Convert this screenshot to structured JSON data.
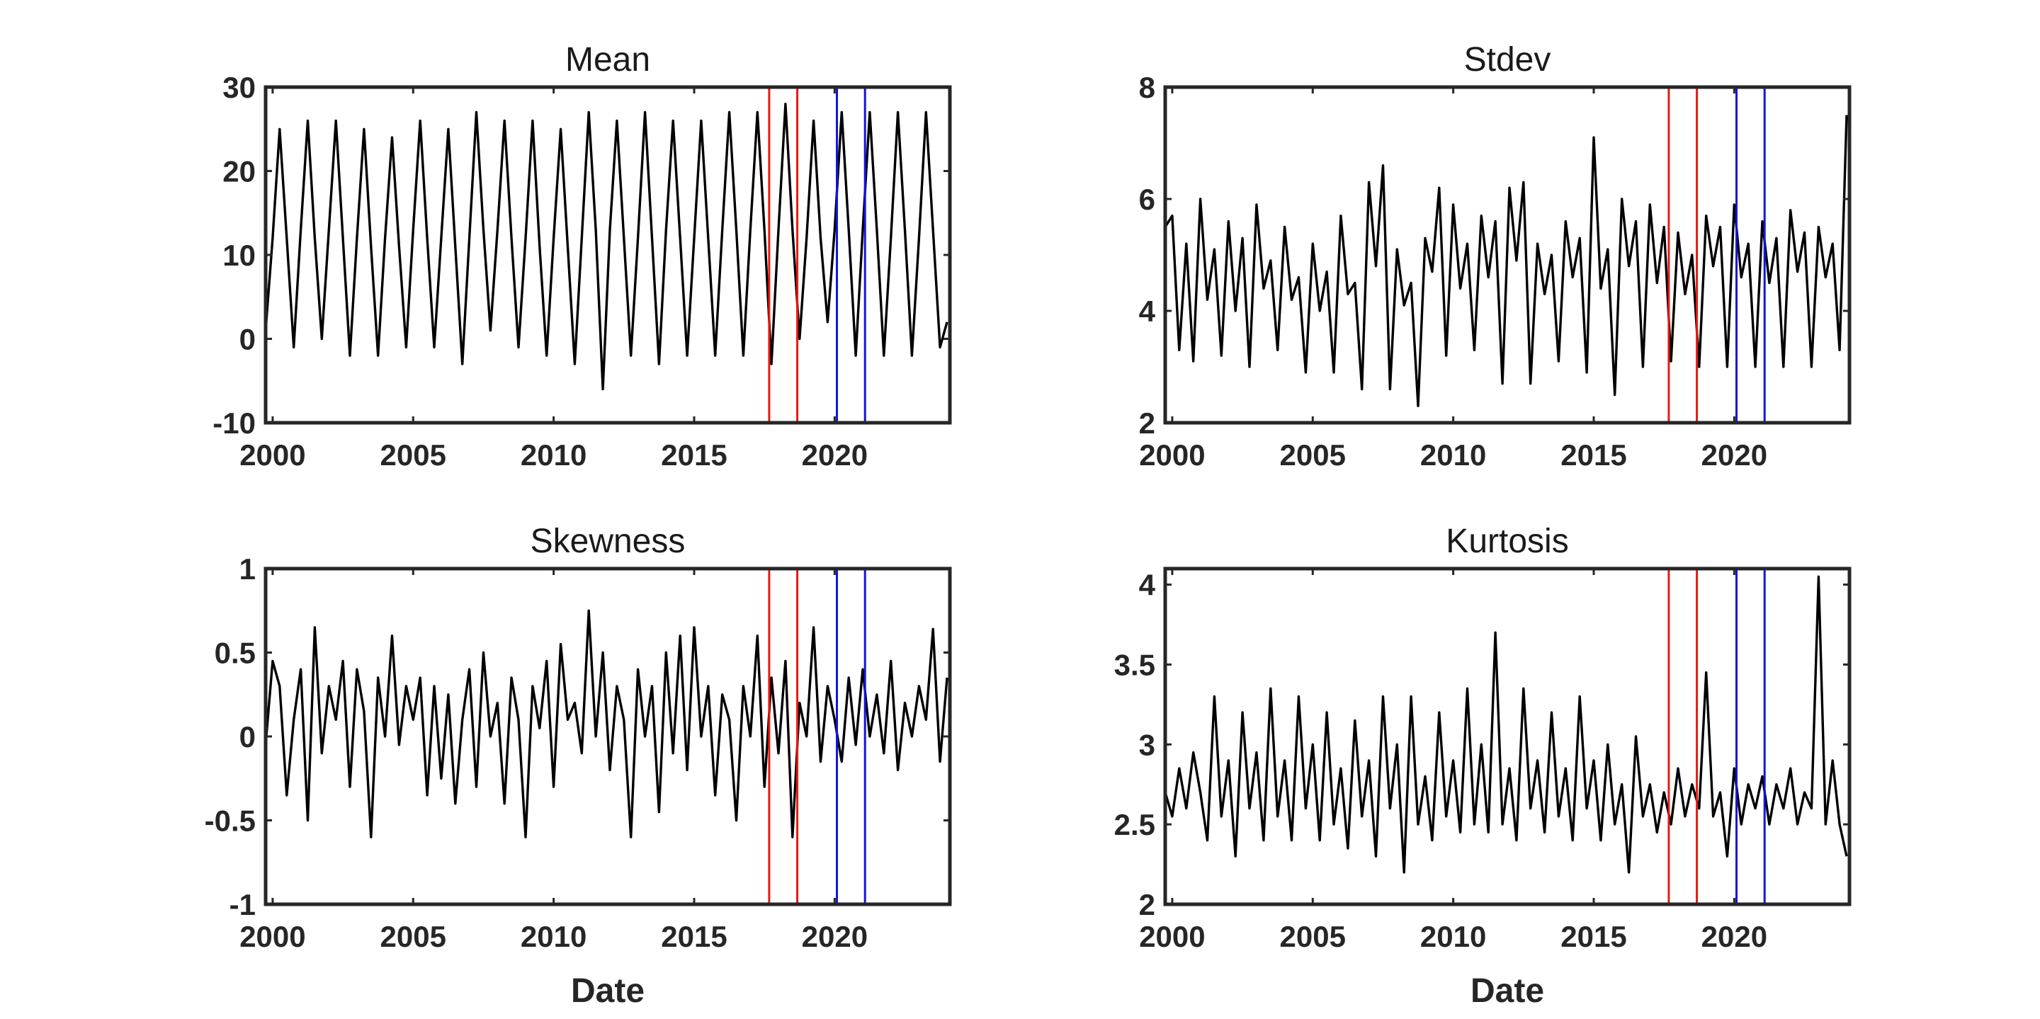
{
  "chart_data": [
    {
      "type": "line",
      "title": "Mean",
      "xlabel": "",
      "xlim": [
        1999.75,
        2024.1
      ],
      "ylim": [
        -10,
        30
      ],
      "xticks": [
        2000,
        2005,
        2010,
        2015,
        2020
      ],
      "xtick_labels": [
        "2000",
        "2005",
        "2010",
        "2015",
        "2020"
      ],
      "yticks": [
        -10,
        0,
        10,
        20,
        30
      ],
      "ytick_labels": [
        "-10",
        "0",
        "10",
        "20",
        "30"
      ],
      "grid": false,
      "series": [
        {
          "color": "#000000",
          "x": [
            1999.75,
            2000.0,
            2000.25,
            2000.5,
            2000.75,
            2001.0,
            2001.25,
            2001.5,
            2001.75,
            2002.0,
            2002.25,
            2002.5,
            2002.75,
            2003.0,
            2003.25,
            2003.5,
            2003.75,
            2004.0,
            2004.25,
            2004.5,
            2004.75,
            2005.0,
            2005.25,
            2005.5,
            2005.75,
            2006.0,
            2006.25,
            2006.5,
            2006.75,
            2007.0,
            2007.25,
            2007.5,
            2007.75,
            2008.0,
            2008.25,
            2008.5,
            2008.75,
            2009.0,
            2009.25,
            2009.5,
            2009.75,
            2010.0,
            2010.25,
            2010.5,
            2010.75,
            2011.0,
            2011.25,
            2011.5,
            2011.75,
            2012.0,
            2012.25,
            2012.5,
            2012.75,
            2013.0,
            2013.25,
            2013.5,
            2013.75,
            2014.0,
            2014.25,
            2014.5,
            2014.75,
            2015.0,
            2015.25,
            2015.5,
            2015.75,
            2016.0,
            2016.25,
            2016.5,
            2016.75,
            2017.0,
            2017.25,
            2017.5,
            2017.75,
            2018.0,
            2018.25,
            2018.5,
            2018.75,
            2019.0,
            2019.25,
            2019.5,
            2019.75,
            2020.0,
            2020.25,
            2020.5,
            2020.75,
            2021.0,
            2021.25,
            2021.5,
            2021.75,
            2022.0,
            2022.25,
            2022.5,
            2022.75,
            2023.0,
            2023.25,
            2023.5,
            2023.75,
            2024.0
          ],
          "y": [
            1,
            12,
            25,
            12,
            -1,
            13,
            26,
            12,
            0,
            13,
            26,
            12,
            -2,
            12,
            25,
            11,
            -2,
            12,
            24,
            11,
            -1,
            13,
            26,
            12,
            -1,
            12,
            25,
            11,
            -3,
            12,
            27,
            13,
            1,
            13,
            26,
            12,
            -1,
            12,
            26,
            11,
            -2,
            12,
            25,
            11,
            -3,
            12,
            27,
            13,
            -6,
            13,
            26,
            12,
            -2,
            12,
            27,
            12,
            -3,
            13,
            26,
            12,
            -2,
            12,
            26,
            12,
            -2,
            13,
            27,
            13,
            -2,
            13,
            27,
            13,
            -3,
            13,
            28,
            13,
            0,
            12,
            26,
            12,
            2,
            13,
            27,
            13,
            -2,
            13,
            27,
            13,
            -2,
            12,
            27,
            13,
            -2,
            12,
            27,
            13,
            -1,
            2
          ]
        }
      ],
      "vlines": [
        {
          "x": 2017.67,
          "color": "#e8190f"
        },
        {
          "x": 2018.67,
          "color": "#e8190f"
        },
        {
          "x": 2020.08,
          "color": "#1015e0"
        },
        {
          "x": 2021.08,
          "color": "#1015e0"
        }
      ]
    },
    {
      "type": "line",
      "title": "Stdev",
      "xlabel": "",
      "xlim": [
        1999.75,
        2024.1
      ],
      "ylim": [
        2,
        8
      ],
      "xticks": [
        2000,
        2005,
        2010,
        2015,
        2020
      ],
      "xtick_labels": [
        "2000",
        "2005",
        "2010",
        "2015",
        "2020"
      ],
      "yticks": [
        2,
        4,
        6,
        8
      ],
      "ytick_labels": [
        "2",
        "4",
        "6",
        "8"
      ],
      "grid": false,
      "series": [
        {
          "color": "#000000",
          "x": [
            1999.75,
            2000.0,
            2000.25,
            2000.5,
            2000.75,
            2001.0,
            2001.25,
            2001.5,
            2001.75,
            2002.0,
            2002.25,
            2002.5,
            2002.75,
            2003.0,
            2003.25,
            2003.5,
            2003.75,
            2004.0,
            2004.25,
            2004.5,
            2004.75,
            2005.0,
            2005.25,
            2005.5,
            2005.75,
            2006.0,
            2006.25,
            2006.5,
            2006.75,
            2007.0,
            2007.25,
            2007.5,
            2007.75,
            2008.0,
            2008.25,
            2008.5,
            2008.75,
            2009.0,
            2009.25,
            2009.5,
            2009.75,
            2010.0,
            2010.25,
            2010.5,
            2010.75,
            2011.0,
            2011.25,
            2011.5,
            2011.75,
            2012.0,
            2012.25,
            2012.5,
            2012.75,
            2013.0,
            2013.25,
            2013.5,
            2013.75,
            2014.0,
            2014.25,
            2014.5,
            2014.75,
            2015.0,
            2015.25,
            2015.5,
            2015.75,
            2016.0,
            2016.25,
            2016.5,
            2016.75,
            2017.0,
            2017.25,
            2017.5,
            2017.75,
            2018.0,
            2018.25,
            2018.5,
            2018.75,
            2019.0,
            2019.25,
            2019.5,
            2019.75,
            2020.0,
            2020.25,
            2020.5,
            2020.75,
            2021.0,
            2021.25,
            2021.5,
            2021.75,
            2022.0,
            2022.25,
            2022.5,
            2022.75,
            2023.0,
            2023.25,
            2023.5,
            2023.75,
            2024.0
          ],
          "y": [
            5.5,
            5.7,
            3.3,
            5.2,
            3.1,
            6.0,
            4.2,
            5.1,
            3.2,
            5.6,
            4.0,
            5.3,
            3.0,
            5.9,
            4.4,
            4.9,
            3.3,
            5.5,
            4.2,
            4.6,
            2.9,
            5.2,
            4.0,
            4.7,
            2.9,
            5.7,
            4.3,
            4.5,
            2.6,
            6.3,
            4.8,
            6.6,
            2.6,
            5.1,
            4.1,
            4.5,
            2.3,
            5.3,
            4.7,
            6.2,
            3.2,
            5.9,
            4.4,
            5.2,
            3.3,
            5.7,
            4.6,
            5.6,
            2.7,
            6.2,
            4.9,
            6.3,
            2.7,
            5.2,
            4.3,
            5.0,
            3.1,
            5.6,
            4.6,
            5.3,
            2.9,
            7.1,
            4.4,
            5.1,
            2.5,
            6.0,
            4.8,
            5.6,
            3.0,
            5.9,
            4.5,
            5.5,
            3.1,
            5.4,
            4.3,
            5.0,
            3.0,
            5.7,
            4.8,
            5.5,
            3.0,
            5.9,
            4.6,
            5.2,
            3.0,
            5.6,
            4.5,
            5.3,
            3.0,
            5.8,
            4.7,
            5.4,
            3.0,
            5.5,
            4.6,
            5.2,
            3.3,
            7.5
          ]
        }
      ],
      "vlines": [
        {
          "x": 2017.67,
          "color": "#e8190f"
        },
        {
          "x": 2018.67,
          "color": "#e8190f"
        },
        {
          "x": 2020.08,
          "color": "#1015e0"
        },
        {
          "x": 2021.08,
          "color": "#1015e0"
        }
      ]
    },
    {
      "type": "line",
      "title": "Skewness",
      "xlabel": "Date",
      "xlim": [
        1999.75,
        2024.1
      ],
      "ylim": [
        -1,
        1
      ],
      "xticks": [
        2000,
        2005,
        2010,
        2015,
        2020
      ],
      "xtick_labels": [
        "2000",
        "2005",
        "2010",
        "2015",
        "2020"
      ],
      "yticks": [
        -1,
        -0.5,
        0,
        0.5,
        1
      ],
      "ytick_labels": [
        "-1",
        "-0.5",
        "0",
        "0.5",
        "1"
      ],
      "grid": false,
      "series": [
        {
          "color": "#000000",
          "x": [
            1999.75,
            2000.0,
            2000.25,
            2000.5,
            2000.75,
            2001.0,
            2001.25,
            2001.5,
            2001.75,
            2002.0,
            2002.25,
            2002.5,
            2002.75,
            2003.0,
            2003.25,
            2003.5,
            2003.75,
            2004.0,
            2004.25,
            2004.5,
            2004.75,
            2005.0,
            2005.25,
            2005.5,
            2005.75,
            2006.0,
            2006.25,
            2006.5,
            2006.75,
            2007.0,
            2007.25,
            2007.5,
            2007.75,
            2008.0,
            2008.25,
            2008.5,
            2008.75,
            2009.0,
            2009.25,
            2009.5,
            2009.75,
            2010.0,
            2010.25,
            2010.5,
            2010.75,
            2011.0,
            2011.25,
            2011.5,
            2011.75,
            2012.0,
            2012.25,
            2012.5,
            2012.75,
            2013.0,
            2013.25,
            2013.5,
            2013.75,
            2014.0,
            2014.25,
            2014.5,
            2014.75,
            2015.0,
            2015.25,
            2015.5,
            2015.75,
            2016.0,
            2016.25,
            2016.5,
            2016.75,
            2017.0,
            2017.25,
            2017.5,
            2017.75,
            2018.0,
            2018.25,
            2018.5,
            2018.75,
            2019.0,
            2019.25,
            2019.5,
            2019.75,
            2020.0,
            2020.25,
            2020.5,
            2020.75,
            2021.0,
            2021.25,
            2021.5,
            2021.75,
            2022.0,
            2022.25,
            2022.5,
            2022.75,
            2023.0,
            2023.25,
            2023.5,
            2023.75,
            2024.0
          ],
          "y": [
            -0.05,
            0.45,
            0.3,
            -0.35,
            0.1,
            0.4,
            -0.5,
            0.65,
            -0.1,
            0.3,
            0.1,
            0.45,
            -0.3,
            0.4,
            0.15,
            -0.6,
            0.35,
            0.0,
            0.6,
            -0.05,
            0.3,
            0.1,
            0.35,
            -0.35,
            0.3,
            -0.25,
            0.25,
            -0.4,
            0.1,
            0.4,
            -0.3,
            0.5,
            0.0,
            0.2,
            -0.4,
            0.35,
            0.1,
            -0.6,
            0.3,
            0.05,
            0.45,
            -0.3,
            0.55,
            0.1,
            0.2,
            -0.1,
            0.75,
            0.0,
            0.5,
            -0.2,
            0.3,
            0.1,
            -0.6,
            0.4,
            0.0,
            0.3,
            -0.45,
            0.5,
            -0.1,
            0.6,
            -0.2,
            0.65,
            0.0,
            0.3,
            -0.35,
            0.25,
            0.1,
            -0.5,
            0.3,
            0.0,
            0.6,
            -0.3,
            0.35,
            -0.1,
            0.45,
            -0.6,
            0.2,
            0.0,
            0.65,
            -0.15,
            0.3,
            0.1,
            -0.15,
            0.35,
            -0.05,
            0.4,
            0.0,
            0.25,
            -0.1,
            0.45,
            -0.2,
            0.2,
            0.0,
            0.3,
            0.1,
            0.64,
            -0.15,
            0.35
          ]
        }
      ],
      "vlines": [
        {
          "x": 2017.67,
          "color": "#e8190f"
        },
        {
          "x": 2018.67,
          "color": "#e8190f"
        },
        {
          "x": 2020.08,
          "color": "#1015e0"
        },
        {
          "x": 2021.08,
          "color": "#1015e0"
        }
      ]
    },
    {
      "type": "line",
      "title": "Kurtosis",
      "xlabel": "Date",
      "xlim": [
        1999.75,
        2024.1
      ],
      "ylim": [
        2,
        4.1
      ],
      "xticks": [
        2000,
        2005,
        2010,
        2015,
        2020
      ],
      "xtick_labels": [
        "2000",
        "2005",
        "2010",
        "2015",
        "2020"
      ],
      "yticks": [
        2,
        2.5,
        3,
        3.5,
        4
      ],
      "ytick_labels": [
        "2",
        "2.5",
        "3",
        "3.5",
        "4"
      ],
      "grid": false,
      "series": [
        {
          "color": "#000000",
          "x": [
            1999.75,
            2000.0,
            2000.25,
            2000.5,
            2000.75,
            2001.0,
            2001.25,
            2001.5,
            2001.75,
            2002.0,
            2002.25,
            2002.5,
            2002.75,
            2003.0,
            2003.25,
            2003.5,
            2003.75,
            2004.0,
            2004.25,
            2004.5,
            2004.75,
            2005.0,
            2005.25,
            2005.5,
            2005.75,
            2006.0,
            2006.25,
            2006.5,
            2006.75,
            2007.0,
            2007.25,
            2007.5,
            2007.75,
            2008.0,
            2008.25,
            2008.5,
            2008.75,
            2009.0,
            2009.25,
            2009.5,
            2009.75,
            2010.0,
            2010.25,
            2010.5,
            2010.75,
            2011.0,
            2011.25,
            2011.5,
            2011.75,
            2012.0,
            2012.25,
            2012.5,
            2012.75,
            2013.0,
            2013.25,
            2013.5,
            2013.75,
            2014.0,
            2014.25,
            2014.5,
            2014.75,
            2015.0,
            2015.25,
            2015.5,
            2015.75,
            2016.0,
            2016.25,
            2016.5,
            2016.75,
            2017.0,
            2017.25,
            2017.5,
            2017.75,
            2018.0,
            2018.25,
            2018.5,
            2018.75,
            2019.0,
            2019.25,
            2019.5,
            2019.75,
            2020.0,
            2020.25,
            2020.5,
            2020.75,
            2021.0,
            2021.25,
            2021.5,
            2021.75,
            2022.0,
            2022.25,
            2022.5,
            2022.75,
            2023.0,
            2023.25,
            2023.5,
            2023.75,
            2024.0
          ],
          "y": [
            2.7,
            2.55,
            2.85,
            2.6,
            2.95,
            2.7,
            2.4,
            3.3,
            2.55,
            2.9,
            2.3,
            3.2,
            2.6,
            2.95,
            2.4,
            3.35,
            2.55,
            2.9,
            2.4,
            3.3,
            2.6,
            3.0,
            2.4,
            3.2,
            2.5,
            2.85,
            2.35,
            3.15,
            2.55,
            2.9,
            2.3,
            3.3,
            2.6,
            3.0,
            2.2,
            3.3,
            2.5,
            2.8,
            2.4,
            3.2,
            2.55,
            2.9,
            2.45,
            3.35,
            2.5,
            3.0,
            2.45,
            3.7,
            2.5,
            2.85,
            2.4,
            3.35,
            2.6,
            2.9,
            2.45,
            3.2,
            2.55,
            2.85,
            2.4,
            3.3,
            2.6,
            2.9,
            2.4,
            3.0,
            2.5,
            2.75,
            2.2,
            3.05,
            2.55,
            2.75,
            2.45,
            2.7,
            2.5,
            2.85,
            2.55,
            2.75,
            2.6,
            3.45,
            2.55,
            2.7,
            2.3,
            2.85,
            2.5,
            2.75,
            2.6,
            2.8,
            2.5,
            2.75,
            2.6,
            2.85,
            2.5,
            2.7,
            2.6,
            4.05,
            2.5,
            2.9,
            2.5,
            2.3
          ]
        }
      ],
      "vlines": [
        {
          "x": 2017.67,
          "color": "#e8190f"
        },
        {
          "x": 2018.67,
          "color": "#e8190f"
        },
        {
          "x": 2020.08,
          "color": "#1015e0"
        },
        {
          "x": 2021.08,
          "color": "#1015e0"
        }
      ]
    }
  ]
}
